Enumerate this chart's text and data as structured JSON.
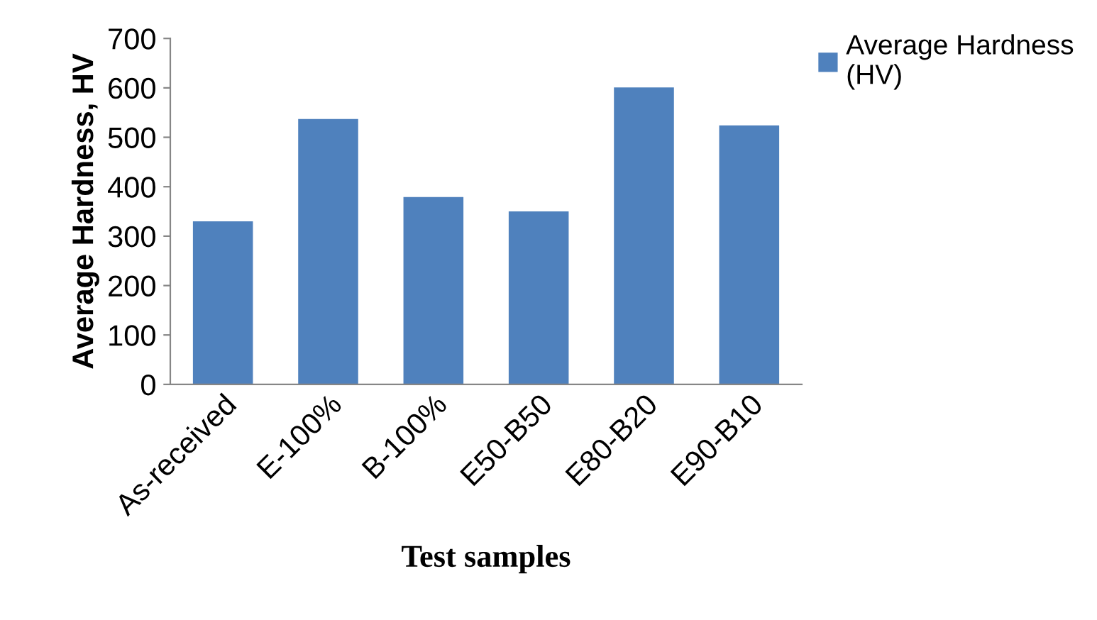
{
  "chart_data": {
    "type": "bar",
    "xlabel": "Test samples",
    "ylabel": "Average Hardness, HV",
    "categories": [
      "As-received",
      "E-100%",
      "B-100%",
      "E50-B50",
      "E80-B20",
      "E90-B10"
    ],
    "series": [
      {
        "name": "Average Hardness\n(HV)",
        "color": "#4f81bd",
        "values": [
          330,
          537,
          379,
          350,
          601,
          524
        ]
      }
    ],
    "ylim": [
      0,
      700
    ],
    "yticks": [
      0,
      100,
      200,
      300,
      400,
      500,
      600,
      700
    ],
    "grid": false,
    "legend": "top right"
  }
}
